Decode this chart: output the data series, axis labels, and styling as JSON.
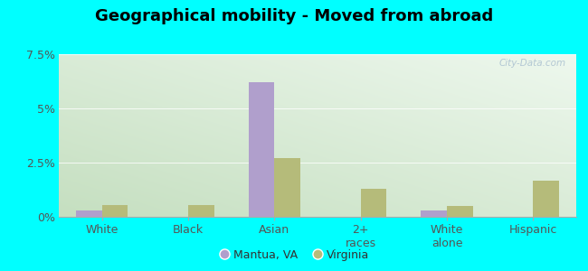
{
  "title": "Geographical mobility - Moved from abroad",
  "categories": [
    "White",
    "Black",
    "Asian",
    "2+\nraces",
    "White\nalone",
    "Hispanic"
  ],
  "mantua_values": [
    0.28,
    0.0,
    6.2,
    0.0,
    0.28,
    0.0
  ],
  "virginia_values": [
    0.55,
    0.55,
    2.7,
    1.3,
    0.5,
    1.65
  ],
  "mantua_color": "#b09fcc",
  "virginia_color": "#b5bb7a",
  "bar_width": 0.3,
  "ylim": [
    0,
    7.5
  ],
  "yticks": [
    0,
    2.5,
    5.0,
    7.5
  ],
  "ytick_labels": [
    "0%",
    "2.5%",
    "5%",
    "7.5%"
  ],
  "bg_top_left": "#c5dfc0",
  "bg_bottom_right": "#e8f5e8",
  "outer_background": "#00ffff",
  "title_fontsize": 13,
  "axis_label_fontsize": 9,
  "legend_labels": [
    "Mantua, VA",
    "Virginia"
  ],
  "watermark": "City-Data.com"
}
